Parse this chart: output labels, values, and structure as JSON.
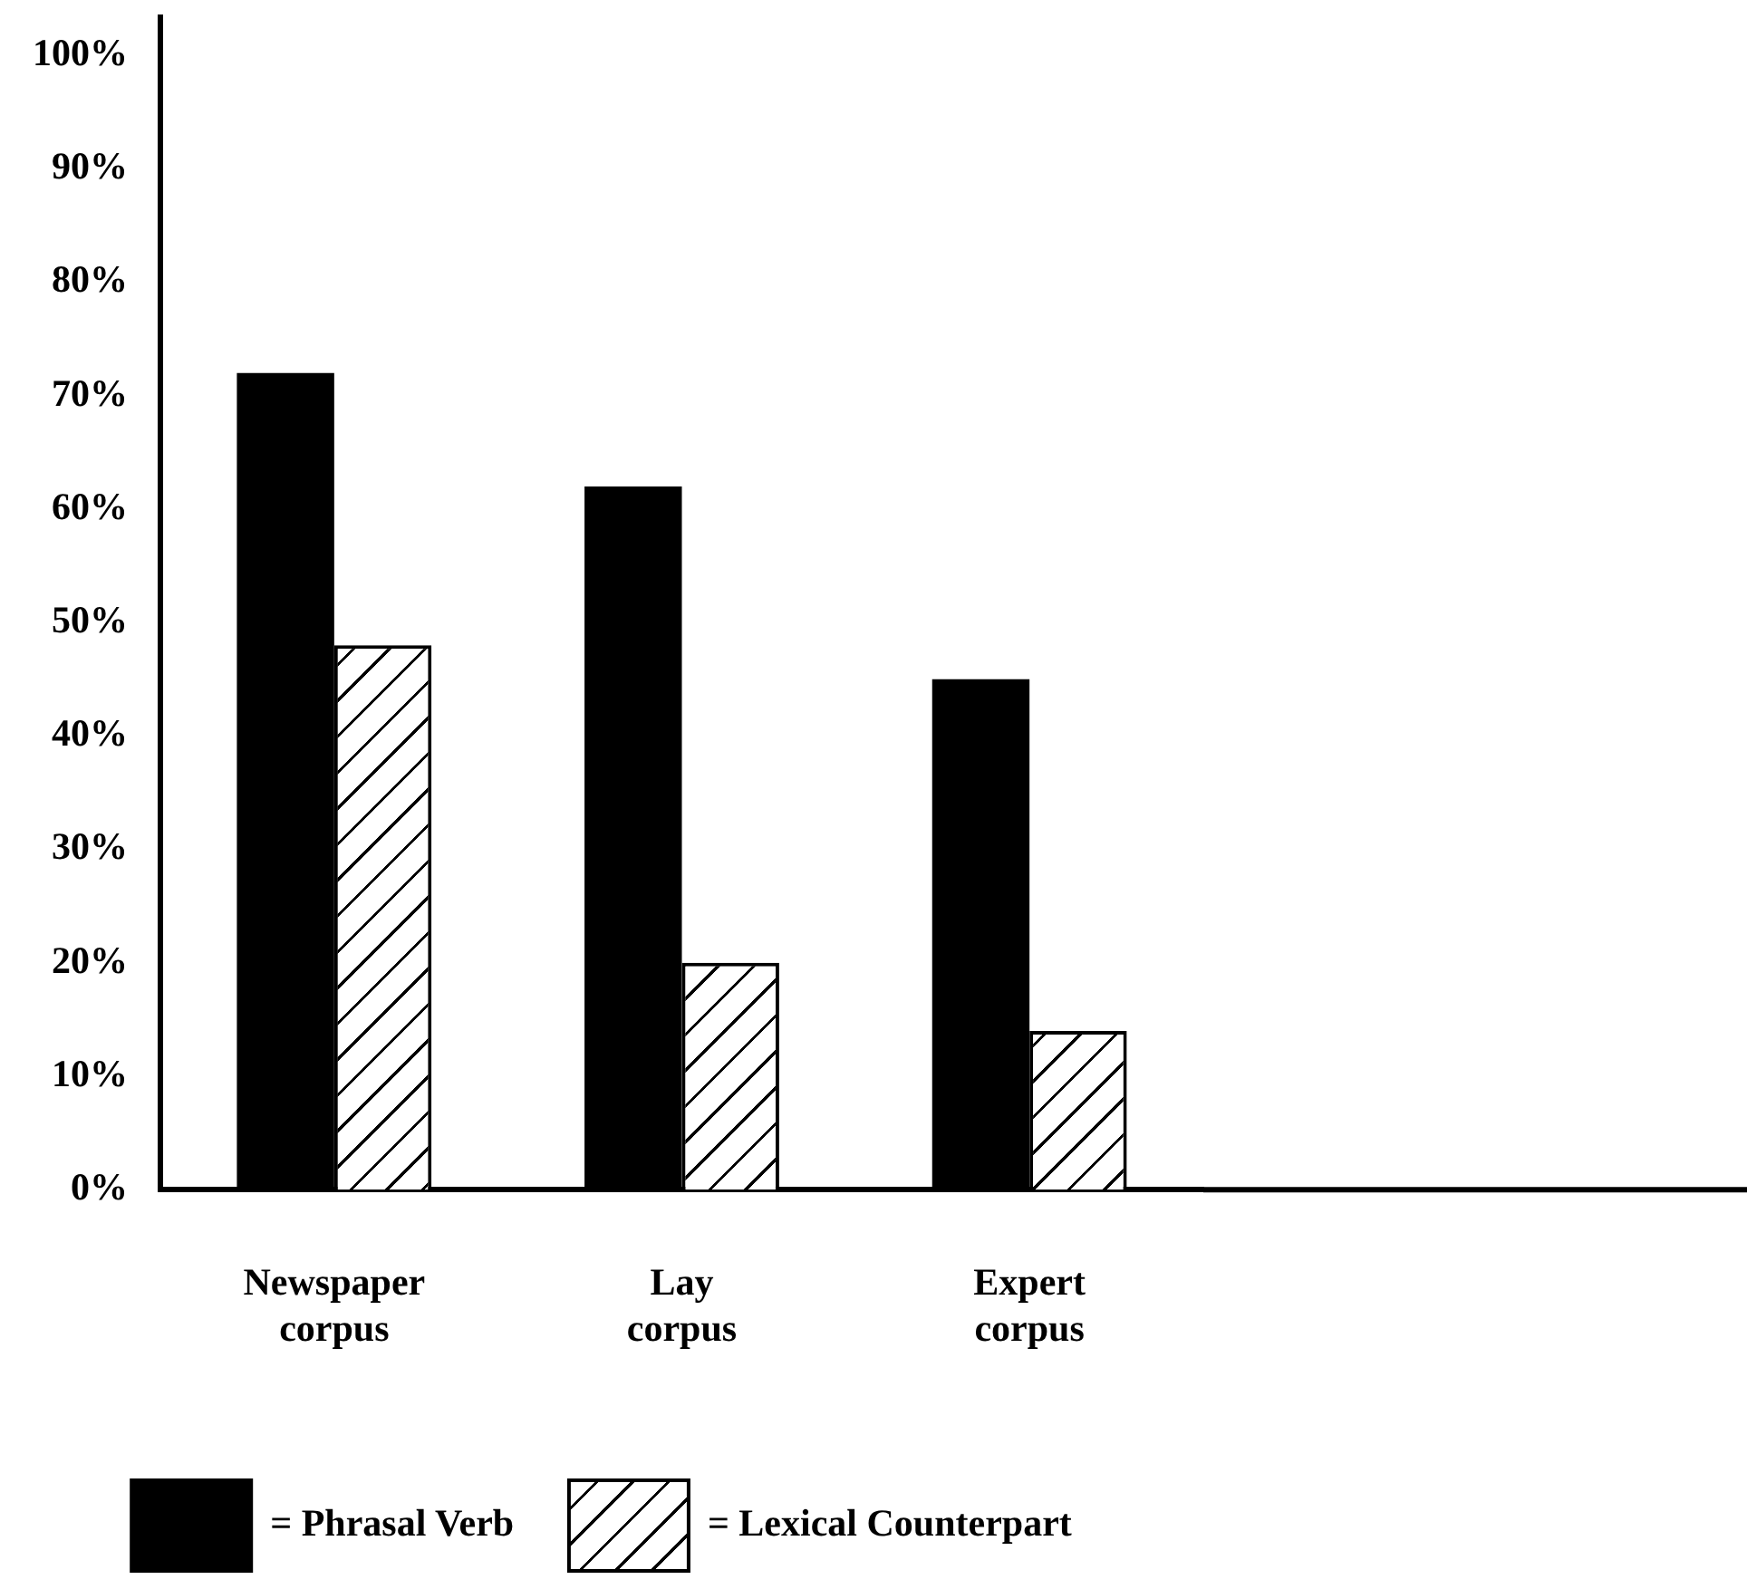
{
  "chart_data": {
    "type": "bar",
    "categories": [
      "Newspaper corpus",
      "Lay corpus",
      "Expert corpus"
    ],
    "series": [
      {
        "name": "= Phrasal Verb",
        "color": "#000000",
        "values": [
          72,
          62,
          45
        ]
      },
      {
        "name": "= Lexical Counterpart",
        "color": "#ffffff",
        "values": [
          48,
          20,
          14
        ]
      }
    ],
    "ylim": [
      0,
      100
    ],
    "yticks": [
      {
        "value": 0,
        "label": "0%"
      },
      {
        "value": 10,
        "label": "10%"
      },
      {
        "value": 20,
        "label": "20%"
      },
      {
        "value": 30,
        "label": "30%"
      },
      {
        "value": 40,
        "label": "40%"
      },
      {
        "value": 50,
        "label": "50%"
      },
      {
        "value": 60,
        "label": "60%"
      },
      {
        "value": 70,
        "label": "70%"
      },
      {
        "value": 80,
        "label": "80%"
      },
      {
        "value": 90,
        "label": "90%"
      },
      {
        "value": 100,
        "label": "100%"
      }
    ],
    "grid": false,
    "legend": "bottom"
  }
}
